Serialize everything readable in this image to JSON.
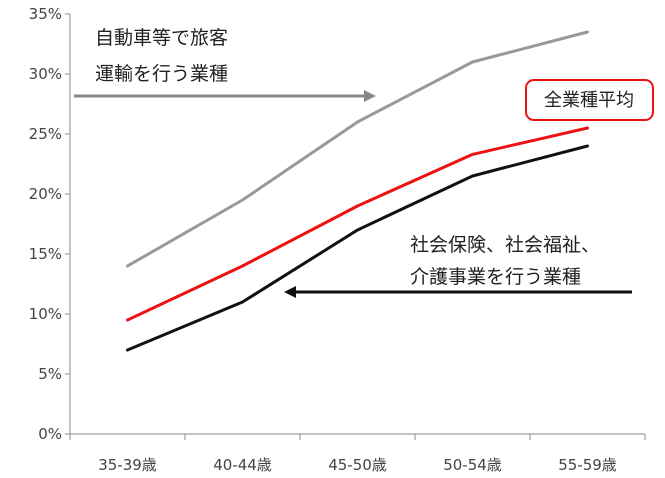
{
  "chart_data": {
    "type": "line",
    "categories": [
      "35-39歳",
      "40-44歳",
      "45-50歳",
      "50-54歳",
      "55-59歳"
    ],
    "series": [
      {
        "name": "自動車等で旅客運輸を行う業種",
        "color": "#999999",
        "values": [
          14,
          19.5,
          26,
          31,
          33.5
        ]
      },
      {
        "name": "全業種平均",
        "color": "#ee1111",
        "values": [
          9.5,
          14,
          19,
          23.3,
          25.5
        ]
      },
      {
        "name": "社会保険、社会福祉、介護事業を行う業種",
        "color": "#111111",
        "values": [
          7,
          11,
          17,
          21.5,
          24
        ]
      }
    ],
    "yticks": [
      "0%",
      "5%",
      "10%",
      "15%",
      "20%",
      "25%",
      "30%",
      "35%"
    ],
    "ylim": [
      0,
      35
    ],
    "grid": false,
    "annotations": {
      "passenger_line1": "自動車等で旅客",
      "passenger_line2": "運輸を行う業種",
      "average": "全業種平均",
      "welfare_line1": "社会保険、社会福祉、",
      "welfare_line2": "介護事業を行う業種"
    }
  }
}
